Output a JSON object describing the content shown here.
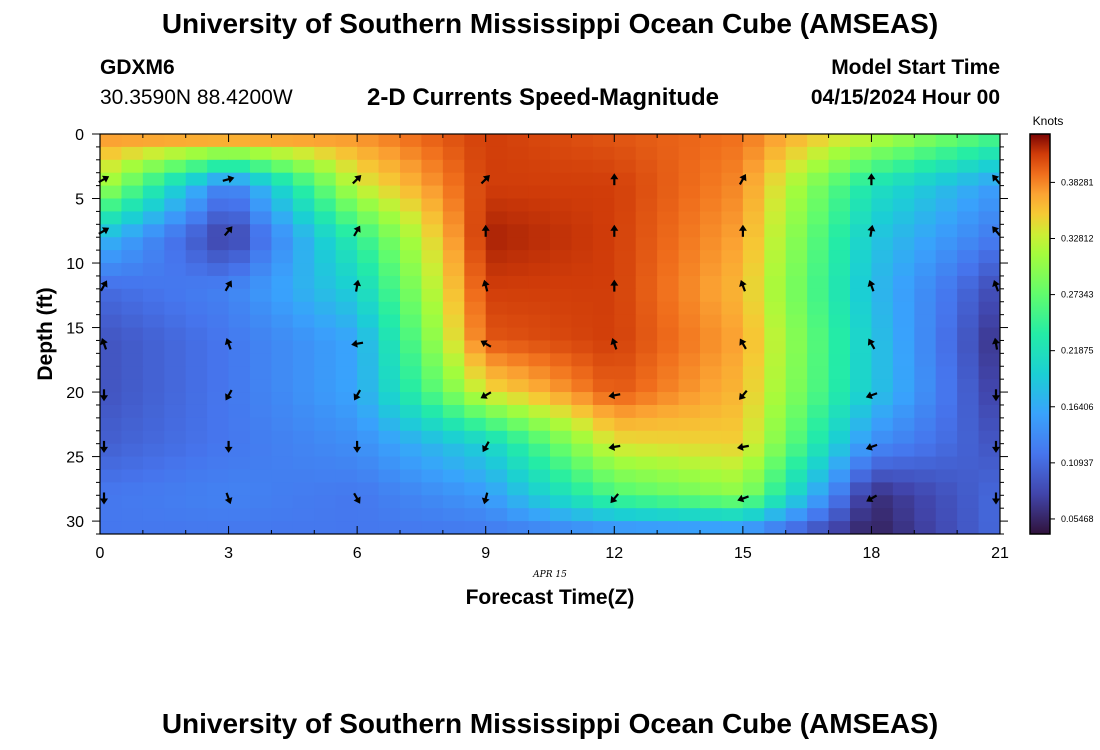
{
  "header": {
    "title": "University of Southern Mississippi Ocean Cube (AMSEAS)",
    "station_id": "GDXM6",
    "coords": "30.3590N  88.4200W",
    "subtitle": "2-D Currents Speed-Magnitude",
    "start_label": "Model Start Time",
    "start_value": "04/15/2024 Hour 00"
  },
  "footer": {
    "title": "University of Southern Mississippi Ocean Cube (AMSEAS)"
  },
  "chart_data": {
    "type": "heatmap",
    "title": "2-D Currents Speed-Magnitude",
    "xlabel": "Forecast Time(Z)",
    "ylabel": "Depth (ft)",
    "date_label": "APR 15",
    "xlim": [
      0,
      21
    ],
    "ylim": [
      0,
      31
    ],
    "x_ticks": [
      0,
      3,
      6,
      9,
      12,
      15,
      18,
      21
    ],
    "y_ticks": [
      0,
      5,
      10,
      15,
      20,
      25,
      30
    ],
    "colorbar": {
      "label": "Knots",
      "range": [
        0.04,
        0.43
      ],
      "ticks": [
        "0.38281",
        "0.32812",
        "0.27343",
        "0.21875",
        "0.16406",
        "0.10937",
        "0.05468"
      ],
      "tick_values": [
        0.38281,
        0.32812,
        0.27343,
        0.21875,
        0.16406,
        0.10937,
        0.05468
      ]
    },
    "grid_x": [
      0,
      3,
      6,
      9,
      12,
      15,
      18,
      21
    ],
    "grid_depth": [
      0,
      4,
      8,
      12,
      16,
      20,
      24,
      28,
      31
    ],
    "speed_knots": [
      [
        0.38,
        0.4,
        0.38,
        0.41,
        0.4,
        0.39,
        0.33,
        0.26
      ],
      [
        0.32,
        0.12,
        0.33,
        0.41,
        0.41,
        0.38,
        0.22,
        0.15
      ],
      [
        0.18,
        0.07,
        0.24,
        0.42,
        0.41,
        0.37,
        0.19,
        0.12
      ],
      [
        0.11,
        0.13,
        0.2,
        0.41,
        0.41,
        0.36,
        0.18,
        0.08
      ],
      [
        0.09,
        0.12,
        0.16,
        0.4,
        0.41,
        0.37,
        0.19,
        0.06
      ],
      [
        0.09,
        0.12,
        0.16,
        0.34,
        0.4,
        0.36,
        0.19,
        0.07
      ],
      [
        0.1,
        0.12,
        0.14,
        0.2,
        0.34,
        0.35,
        0.14,
        0.09
      ],
      [
        0.12,
        0.13,
        0.12,
        0.15,
        0.26,
        0.3,
        0.06,
        0.11
      ],
      [
        0.12,
        0.12,
        0.12,
        0.12,
        0.13,
        0.13,
        0.05,
        0.11
      ]
    ],
    "arrow_times": [
      0,
      3,
      6,
      9,
      12,
      15,
      18,
      21
    ],
    "arrow_depths": [
      3.5,
      7.5,
      11.75,
      16.25,
      20.25,
      24.25,
      28.25
    ],
    "arrow_dir_deg": [
      [
        -30,
        -15,
        -45,
        -45,
        -90,
        -60,
        -90,
        -130
      ],
      [
        -30,
        -50,
        -60,
        -90,
        -90,
        -90,
        -80,
        -130
      ],
      [
        -60,
        -60,
        -80,
        -105,
        -90,
        -110,
        -110,
        -110
      ],
      [
        -110,
        -110,
        170,
        -150,
        -110,
        -120,
        -120,
        -100
      ],
      [
        90,
        120,
        120,
        150,
        170,
        130,
        160,
        90
      ],
      [
        90,
        90,
        90,
        120,
        170,
        170,
        160,
        90
      ],
      [
        90,
        70,
        60,
        105,
        130,
        160,
        150,
        90
      ]
    ]
  }
}
